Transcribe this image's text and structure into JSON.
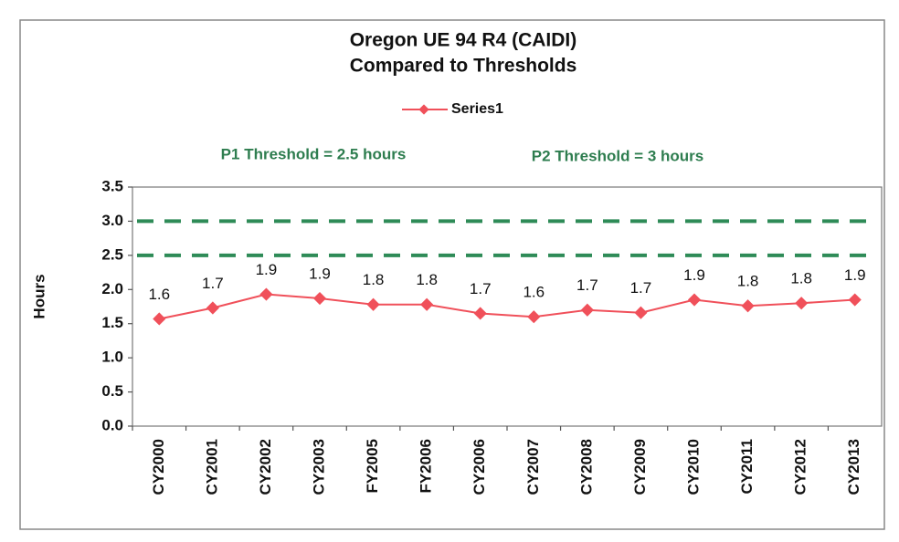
{
  "chart_data": {
    "type": "line",
    "title": [
      "Oregon UE 94 R4 (CAIDI)",
      "Compared to Thresholds"
    ],
    "y_label": "Hours",
    "annotations": [
      "P1 Threshold = 2.5 hours",
      "P2 Threshold = 3 hours"
    ],
    "categories": [
      "CY2000",
      "CY2001",
      "CY2002",
      "CY2003",
      "FY2005",
      "FY2006",
      "CY2006",
      "CY2007",
      "CY2008",
      "CY2009",
      "CY2010",
      "CY2011",
      "CY2012",
      "CY2013"
    ],
    "series": [
      {
        "name": "Series1",
        "color": "#f0505a",
        "values": [
          1.57,
          1.73,
          1.93,
          1.87,
          1.78,
          1.78,
          1.65,
          1.6,
          1.7,
          1.66,
          1.85,
          1.76,
          1.8,
          1.85
        ],
        "value_labels": [
          "1.6",
          "1.7",
          "1.9",
          "1.9",
          "1.8",
          "1.8",
          "1.7",
          "1.6",
          "1.7",
          "1.7",
          "1.9",
          "1.8",
          "1.8",
          "1.9"
        ]
      }
    ],
    "reference_lines": [
      {
        "value": 3,
        "color": "#2e8b57"
      },
      {
        "value": 2.5,
        "color": "#2e8b57"
      }
    ],
    "ylim": [
      0,
      3.5
    ],
    "yticks": [
      {
        "value": 0,
        "label": "0.0"
      },
      0.5,
      {
        "value": 1,
        "label": "1.0"
      },
      1.5,
      {
        "value": 2,
        "label": "2.0"
      },
      2.5,
      {
        "value": 3,
        "label": "3.0"
      },
      3.5
    ],
    "legend": "top"
  }
}
